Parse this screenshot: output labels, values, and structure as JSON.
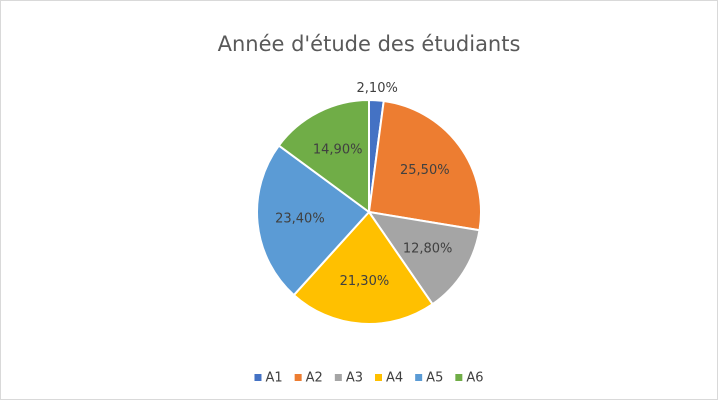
{
  "chart_data": {
    "type": "pie",
    "title": "Année d'étude des étudiants",
    "categories": [
      "A1",
      "A2",
      "A3",
      "A4",
      "A5",
      "A6"
    ],
    "values": [
      2.1,
      25.5,
      12.8,
      21.3,
      23.4,
      14.9
    ],
    "value_labels": [
      "2,10%",
      "25,50%",
      "12,80%",
      "21,30%",
      "23,40%",
      "14,90%"
    ],
    "colors": [
      "#4472c4",
      "#ed7d31",
      "#a5a5a5",
      "#ffc000",
      "#5b9bd5",
      "#70ad47"
    ],
    "legend": "bottom"
  }
}
